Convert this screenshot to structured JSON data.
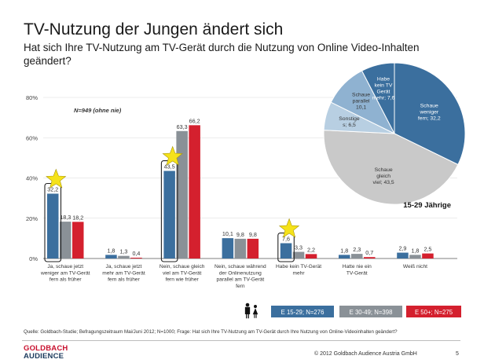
{
  "title": "TV-Nutzung der Jungen ändert sich",
  "subtitle": "Hat sich Ihre TV-Nutzung am TV-Gerät durch die Nutzung von Online Video-Inhalten geändert?",
  "source": "Quelle: Goldbach-Studie; Befragungszeitraum Mai/Juni 2012; N=1000; Frage: Hat sich Ihre TV-Nutzung am TV-Gerät durch Ihre Nutzung von Online-Videoinhalten geändert?",
  "logo": {
    "line1": "GOLDBACH",
    "line2": "AUDIENCE"
  },
  "copyright": "© 2012 Goldbach Audience Austria GmbH",
  "page_number": "5",
  "colors": {
    "e1529": "#3b6f9e",
    "e3049": "#8a9197",
    "e50": "#d4202e",
    "pie_dark": "#3b6f9e",
    "pie_mid": "#8fb2d1",
    "pie_light": "#b8cfe2",
    "pie_gray": "#c9c9c9",
    "star": "#f5e21a"
  },
  "icons": {
    "star": "star-icon",
    "people": "people-icon"
  },
  "chart_data": [
    {
      "type": "bar",
      "note": "N=949 (ohne nie)",
      "ylim": [
        0,
        80
      ],
      "yticks": [
        "0%",
        "20%",
        "40%",
        "60%",
        "80%"
      ],
      "categories": [
        "Ja, schaue jetzt weniger am TV-Gerät fern als früher",
        "Ja, schaue jetzt mehr am TV-Gerät fern als früher",
        "Nein, schaue gleich viel am TV-Gerät fern wie früher",
        "Nein, schaue während der Onlinenutzung parallel am TV-Gerät fern",
        "Habe kein TV-Gerät mehr",
        "Hatte nie ein TV-Gerät",
        "Weiß nicht"
      ],
      "series": [
        {
          "name": "E 15-29; N=276",
          "values": [
            32.2,
            1.8,
            43.5,
            10.1,
            7.6,
            1.8,
            2.9
          ],
          "labels": [
            "32,2",
            "1,8",
            "43,5",
            "10,1",
            "7,6",
            "1,8",
            "2,9"
          ]
        },
        {
          "name": "E 30-49; N=398",
          "values": [
            18.3,
            1.3,
            63.3,
            9.8,
            3.3,
            2.3,
            1.8
          ],
          "labels": [
            "18,3",
            "1,3",
            "63,3",
            "9,8",
            "3,3",
            "2,3",
            "1,8"
          ]
        },
        {
          "name": "E 50+; N=275",
          "values": [
            18.2,
            0.4,
            66.2,
            9.8,
            2.2,
            0.7,
            2.5
          ],
          "labels": [
            "18,2",
            "0,4",
            "66,2",
            "9,8",
            "2,2",
            "0,7",
            "2,5"
          ]
        }
      ],
      "highlighted": [
        0,
        2,
        4
      ]
    },
    {
      "type": "pie",
      "title": "15-29 Jährige",
      "slices": [
        {
          "label": "Schaue weniger fern",
          "value": 32.2,
          "value_label": "32,2"
        },
        {
          "label": "Schaue gleich viel",
          "value": 43.5,
          "value_label": "43,5"
        },
        {
          "label": "Sonstige",
          "value": 6.5,
          "value_label": "6,5"
        },
        {
          "label": "Schaue parallel",
          "value": 10.1,
          "value_label": "10,1"
        },
        {
          "label": "Habe kein TV Gerät mehr",
          "value": 7.6,
          "value_label": "7,6"
        }
      ]
    }
  ]
}
